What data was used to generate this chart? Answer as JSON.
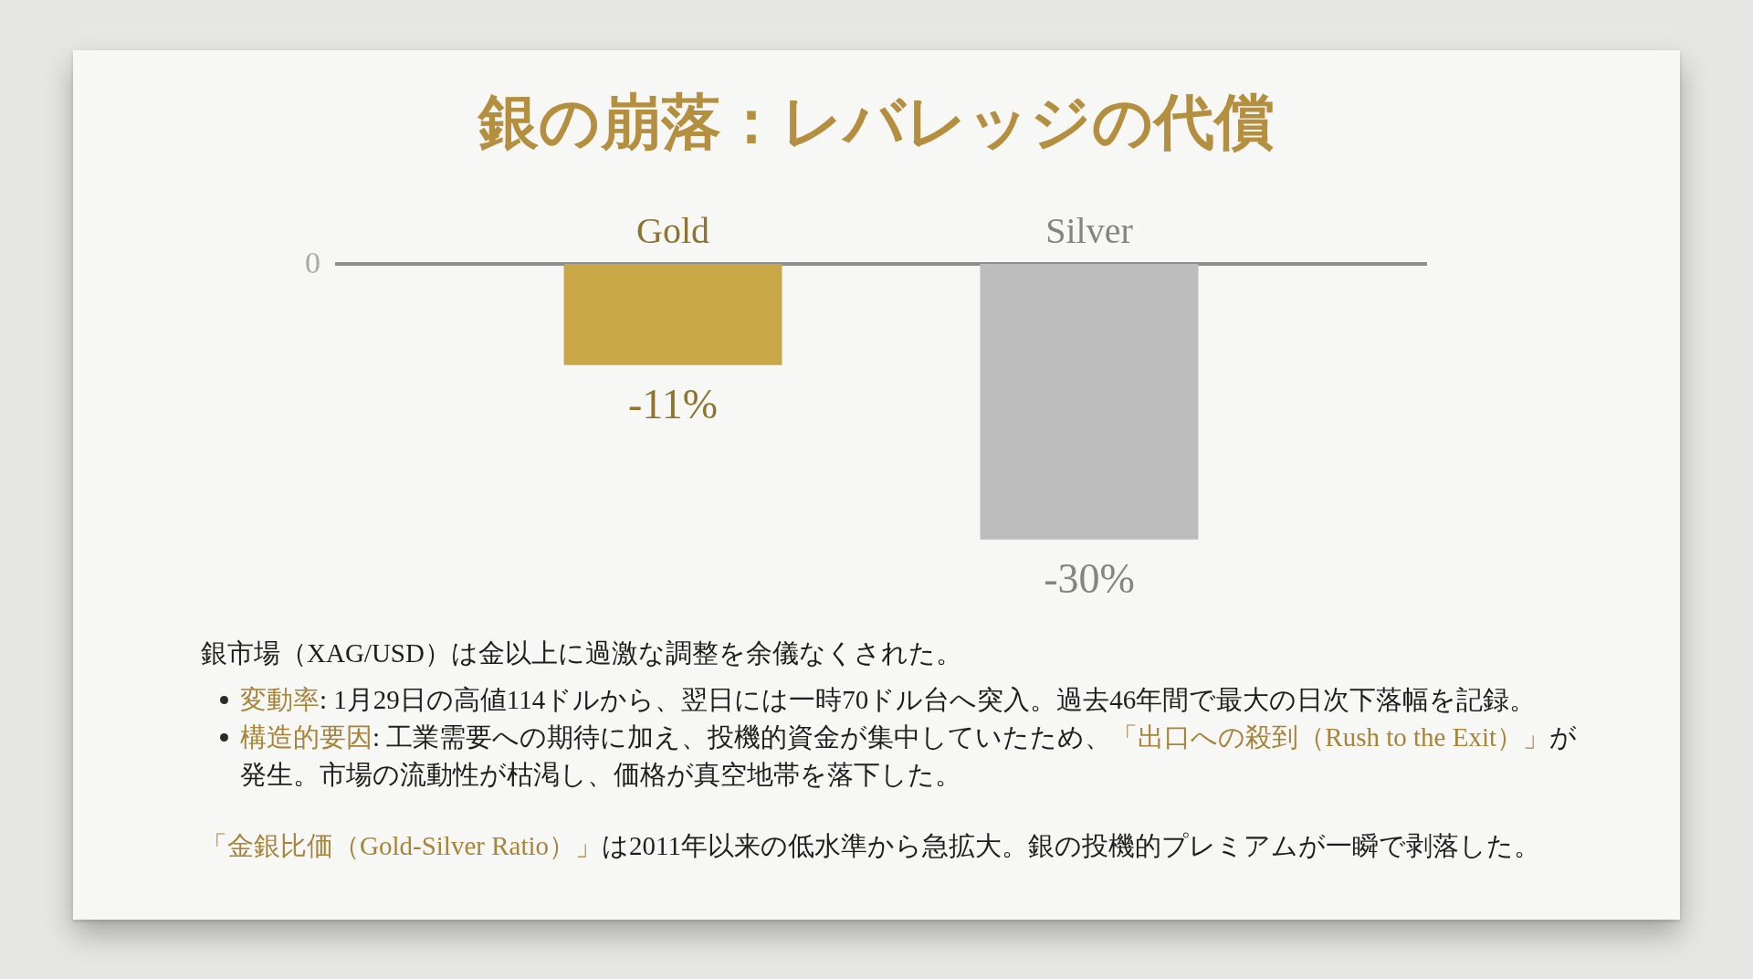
{
  "chart_data": {
    "type": "bar",
    "title": "銀の崩落：レバレッジの代償",
    "categories": [
      "Gold",
      "Silver"
    ],
    "values": [
      -11,
      -30
    ],
    "colors": [
      "#c9a646",
      "#bdbdbd"
    ],
    "value_labels": [
      "-11%",
      "-30%"
    ],
    "annotations": [
      "銀市場（XAG/USD）は金以上に過激な調整を余儀なくされた。",
      "変動率",
      ": 1月29日の高値114ドルから、翌日には一時70ドル台へ突入。過去46年間で最大の日次下落幅を記録。",
      "構造的要因",
      ": 工業需要への期待に加え、投機的資金が集中していたため、",
      "「出口への殺到（Rush to the Exit）」",
      "が",
      "発生。市場の流動性が枯渇し、価格が真空地帯を落下した。",
      "「金銀比価（Gold-Silver Ratio）」",
      "は2011年以来の低水準から急拡大。銀の投機的プレミアムが一瞬で剥落した。",
      "0"
    ]
  }
}
